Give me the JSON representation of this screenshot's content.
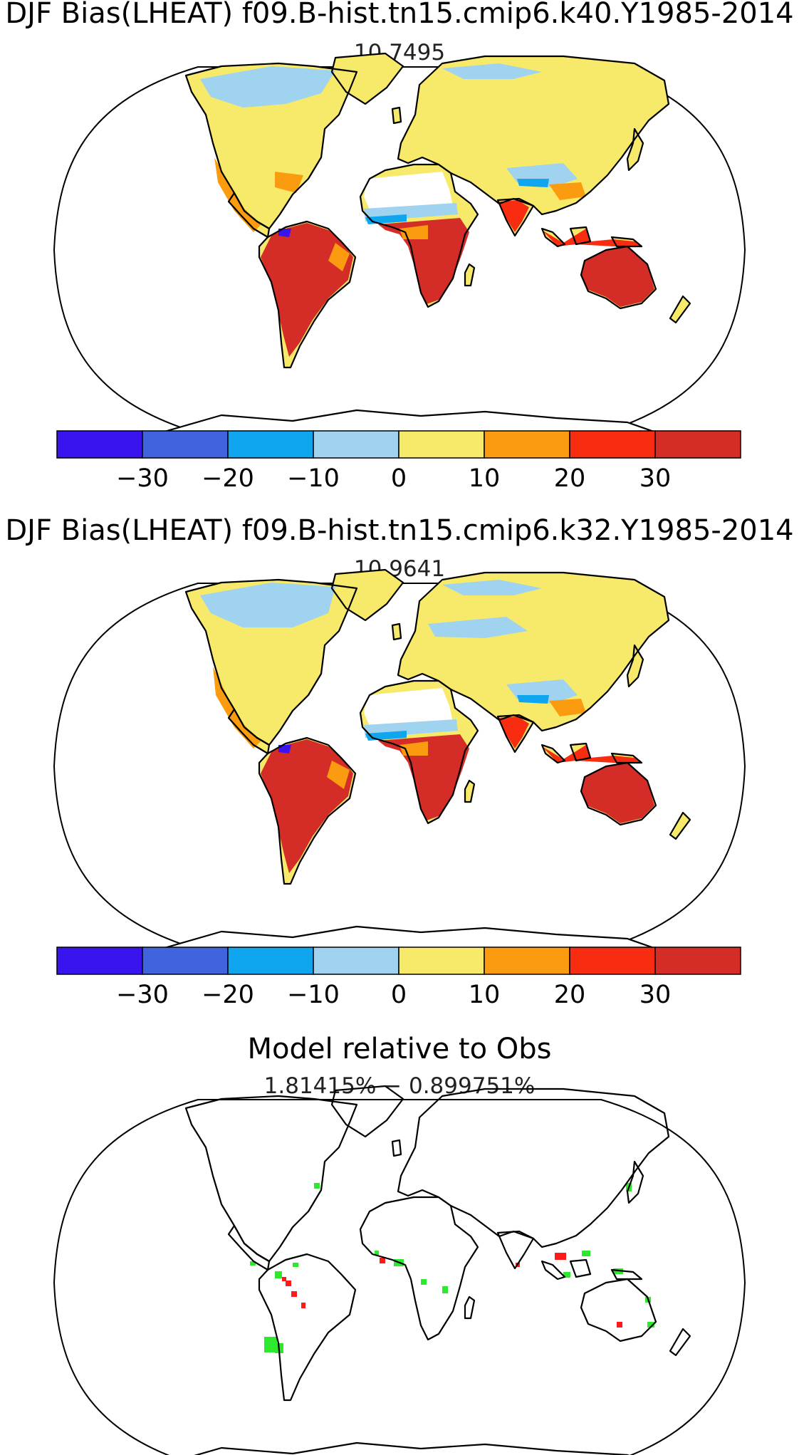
{
  "panels": [
    {
      "title": "DJF Bias(LHEAT) f09.B-hist.tn15.cmip6.k40.Y1985-2014",
      "subtitle": "10.7495",
      "regions": [
        {
          "name": "north-america",
          "level": "0 to 10",
          "color": "#f7e96a"
        },
        {
          "name": "canada-arctic",
          "level": "-10 to 0",
          "color": "#9fd3ef"
        },
        {
          "name": "mexico",
          "level": "10 to 20",
          "color": "#fb9b0f"
        },
        {
          "name": "south-america",
          "level": "above 30",
          "color": "#d42d27"
        },
        {
          "name": "sahara",
          "level": "missing",
          "color": "#ffffff"
        },
        {
          "name": "sub-saharan-africa",
          "level": "above 30",
          "color": "#d42d27"
        },
        {
          "name": "eurasia",
          "level": "0 to 10",
          "color": "#f7e96a"
        },
        {
          "name": "india",
          "level": "20 to 30",
          "color": "#f82c10"
        },
        {
          "name": "southeast-asia",
          "level": "20 to 30",
          "color": "#f82c10"
        },
        {
          "name": "australia",
          "level": "above 30",
          "color": "#d42d27"
        },
        {
          "name": "antarctica",
          "level": "missing",
          "color": "#ffffff"
        }
      ]
    },
    {
      "title": "DJF Bias(LHEAT) f09.B-hist.tn15.cmip6.k32.Y1985-2014",
      "subtitle": "10.9641",
      "regions": [
        {
          "name": "north-america",
          "level": "0 to 10",
          "color": "#f7e96a"
        },
        {
          "name": "canada-arctic",
          "level": "-10 to 0",
          "color": "#9fd3ef"
        },
        {
          "name": "mexico",
          "level": "10 to 20",
          "color": "#fb9b0f"
        },
        {
          "name": "south-america",
          "level": "above 30",
          "color": "#d42d27"
        },
        {
          "name": "sahara",
          "level": "missing",
          "color": "#ffffff"
        },
        {
          "name": "sub-saharan-africa",
          "level": "above 30",
          "color": "#d42d27"
        },
        {
          "name": "eurasia",
          "level": "0 to 10",
          "color": "#f7e96a"
        },
        {
          "name": "india",
          "level": "20 to 30",
          "color": "#f82c10"
        },
        {
          "name": "southeast-asia",
          "level": "20 to 30",
          "color": "#f82c10"
        },
        {
          "name": "australia",
          "level": "above 30",
          "color": "#d42d27"
        },
        {
          "name": "antarctica",
          "level": "missing",
          "color": "#ffffff"
        }
      ]
    },
    {
      "title": "Model relative to Obs",
      "subtitle": "1.81415% − 0.899751%",
      "legend_colors": {
        "improved": "#2ee82e",
        "degraded": "#ff1a1a"
      }
    }
  ],
  "colorbar": {
    "colors": [
      "#3a14ee",
      "#3f64dd",
      "#10a6ef",
      "#9fd3ef",
      "#f7e96a",
      "#fb9b0f",
      "#f82c10",
      "#d42d27"
    ],
    "ticks": [
      "−30",
      "−20",
      "−10",
      "0",
      "10",
      "20",
      "30"
    ]
  }
}
